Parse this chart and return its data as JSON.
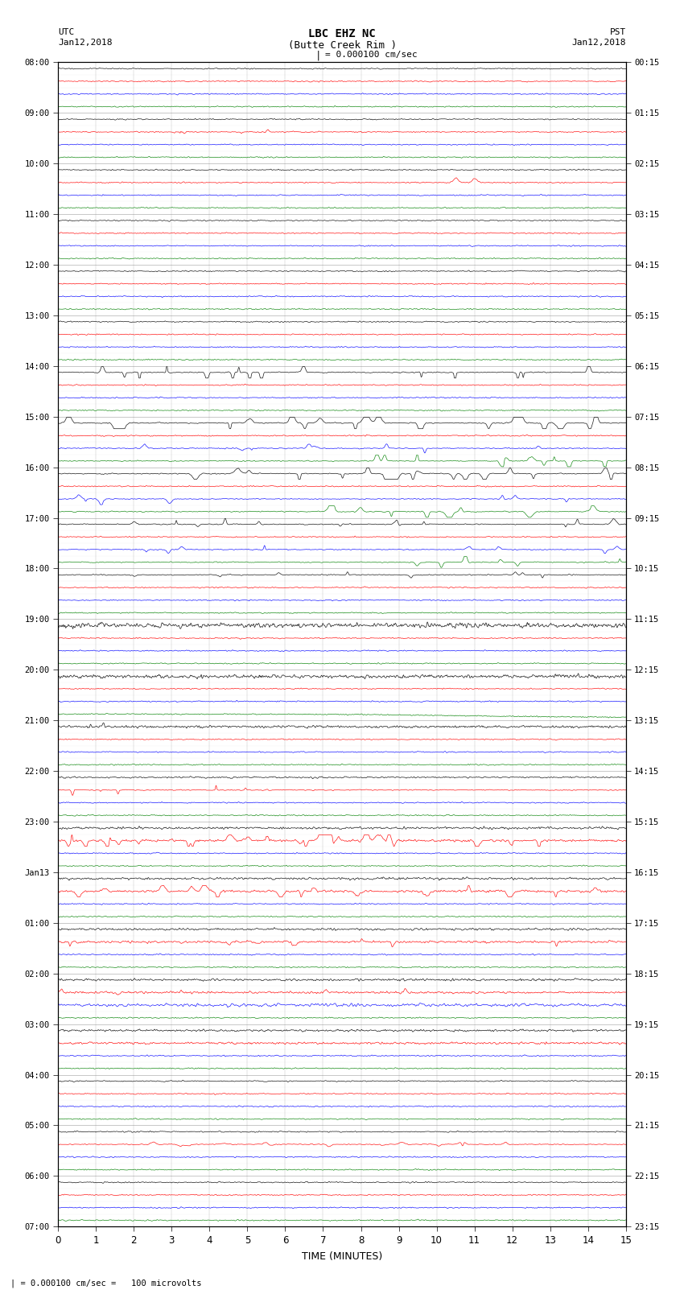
{
  "title_line1": "LBC EHZ NC",
  "title_line2": "(Butte Creek Rim )",
  "scale_label": "= 0.000100 cm/sec",
  "footer_label": "= 0.000100 cm/sec =   100 microvolts",
  "utc_label": "UTC",
  "pst_label": "PST",
  "date_left": "Jan12,2018",
  "date_right": "Jan12,2018",
  "xlabel": "TIME (MINUTES)",
  "xlim": [
    0,
    15
  ],
  "xticks": [
    0,
    1,
    2,
    3,
    4,
    5,
    6,
    7,
    8,
    9,
    10,
    11,
    12,
    13,
    14,
    15
  ],
  "bg_color": "#ffffff",
  "trace_colors": [
    "black",
    "red",
    "blue",
    "green"
  ],
  "left_times_utc": [
    "08:00",
    "",
    "",
    "",
    "09:00",
    "",
    "",
    "",
    "10:00",
    "",
    "",
    "",
    "11:00",
    "",
    "",
    "",
    "12:00",
    "",
    "",
    "",
    "13:00",
    "",
    "",
    "",
    "14:00",
    "",
    "",
    "",
    "15:00",
    "",
    "",
    "",
    "16:00",
    "",
    "",
    "",
    "17:00",
    "",
    "",
    "",
    "18:00",
    "",
    "",
    "",
    "19:00",
    "",
    "",
    "",
    "20:00",
    "",
    "",
    "",
    "21:00",
    "",
    "",
    "",
    "22:00",
    "",
    "",
    "",
    "23:00",
    "",
    "",
    "",
    "Jan13",
    "",
    "",
    "",
    "01:00",
    "",
    "",
    "",
    "02:00",
    "",
    "",
    "",
    "03:00",
    "",
    "",
    "",
    "04:00",
    "",
    "",
    "",
    "05:00",
    "",
    "",
    "",
    "06:00",
    "",
    "",
    "",
    "07:00",
    "",
    ""
  ],
  "right_times_pst": [
    "00:15",
    "",
    "",
    "",
    "01:15",
    "",
    "",
    "",
    "02:15",
    "",
    "",
    "",
    "03:15",
    "",
    "",
    "",
    "04:15",
    "",
    "",
    "",
    "05:15",
    "",
    "",
    "",
    "06:15",
    "",
    "",
    "",
    "07:15",
    "",
    "",
    "",
    "08:15",
    "",
    "",
    "",
    "09:15",
    "",
    "",
    "",
    "10:15",
    "",
    "",
    "",
    "11:15",
    "",
    "",
    "",
    "12:15",
    "",
    "",
    "",
    "13:15",
    "",
    "",
    "",
    "14:15",
    "",
    "",
    "",
    "15:15",
    "",
    "",
    "",
    "16:15",
    "",
    "",
    "",
    "17:15",
    "",
    "",
    "",
    "18:15",
    "",
    "",
    "",
    "19:15",
    "",
    "",
    "",
    "20:15",
    "",
    "",
    "",
    "21:15",
    "",
    "",
    "",
    "22:15",
    "",
    "",
    "",
    "23:15",
    "",
    ""
  ],
  "num_groups": 23,
  "traces_per_group": 4,
  "dpi": 100,
  "figsize": [
    8.5,
    16.13
  ]
}
